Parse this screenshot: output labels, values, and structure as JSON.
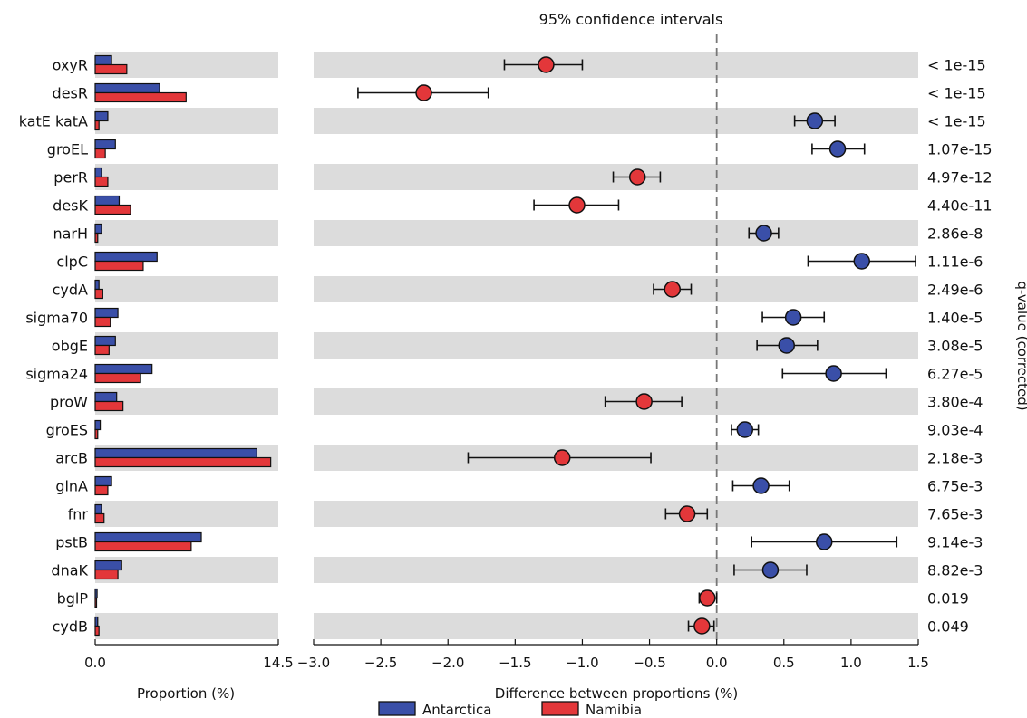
{
  "chart_data": {
    "type": "bar",
    "title": "95% confidence intervals",
    "genes": [
      "oxyR",
      "desR",
      "katE katA",
      "groEL",
      "perR",
      "desK",
      "narH",
      "clpC",
      "cydA",
      "sigma70",
      "obgE",
      "sigma24",
      "proW",
      "groES",
      "arcB",
      "glnA",
      "fnr",
      "pstB",
      "dnaK",
      "bglP",
      "cydB"
    ],
    "qvalues": [
      "< 1e-15",
      "< 1e-15",
      "< 1e-15",
      "1.07e-15",
      "4.97e-12",
      "4.40e-11",
      "2.86e-8",
      "1.11e-6",
      "2.49e-6",
      "1.40e-5",
      "3.08e-5",
      "6.27e-5",
      "3.80e-4",
      "9.03e-4",
      "2.18e-3",
      "6.75e-3",
      "7.65e-3",
      "9.14e-3",
      "8.82e-3",
      "0.019",
      "0.049"
    ],
    "proportion": {
      "xlabel": "Proportion (%)",
      "xlim": [
        0,
        14.5
      ],
      "ticks": [
        "0.0",
        "14.5"
      ],
      "series": [
        {
          "name": "Antarctica",
          "color": "#3a4fa8",
          "values": [
            1.3,
            5.1,
            1.0,
            1.6,
            0.5,
            1.9,
            0.5,
            4.9,
            0.3,
            1.8,
            1.6,
            4.5,
            1.7,
            0.4,
            12.8,
            1.3,
            0.5,
            8.4,
            2.1,
            0.15,
            0.2
          ]
        },
        {
          "name": "Namibia",
          "color": "#e3373a",
          "values": [
            2.5,
            7.2,
            0.3,
            0.8,
            1.0,
            2.8,
            0.2,
            3.8,
            0.6,
            1.2,
            1.1,
            3.6,
            2.2,
            0.2,
            13.9,
            1.0,
            0.7,
            7.6,
            1.8,
            0.1,
            0.3
          ]
        }
      ]
    },
    "difference": {
      "xlabel": "Difference between proportions (%)",
      "xlim": [
        -3.0,
        1.5
      ],
      "ticks": [
        "−3.0",
        "−2.5",
        "−2.0",
        "−1.5",
        "−1.0",
        "−0.5",
        "0.0",
        "0.5",
        "1.0",
        "1.5"
      ],
      "values": [
        -1.27,
        -2.18,
        0.73,
        0.9,
        -0.59,
        -1.04,
        0.35,
        1.08,
        -0.33,
        0.57,
        0.52,
        0.87,
        -0.54,
        0.21,
        -1.15,
        0.33,
        -0.22,
        0.8,
        0.4,
        -0.07,
        -0.11
      ],
      "ci_low": [
        -1.58,
        -2.67,
        0.58,
        0.71,
        -0.77,
        -1.36,
        0.24,
        0.68,
        -0.47,
        0.34,
        0.3,
        0.49,
        -0.83,
        0.11,
        -1.85,
        0.12,
        -0.38,
        0.26,
        0.13,
        -0.13,
        -0.21
      ],
      "ci_high": [
        -1.0,
        -1.7,
        0.88,
        1.1,
        -0.42,
        -0.73,
        0.46,
        1.48,
        -0.19,
        0.8,
        0.75,
        1.26,
        -0.26,
        0.31,
        -0.49,
        0.54,
        -0.07,
        1.34,
        0.67,
        0.0,
        -0.02
      ]
    },
    "right_axis_label": "q-value (corrected)",
    "legend": {
      "items": [
        {
          "name": "Antarctica",
          "color": "#3a4fa8"
        },
        {
          "name": "Namibia",
          "color": "#e3373a"
        }
      ],
      "placement": "bottom-center"
    }
  }
}
